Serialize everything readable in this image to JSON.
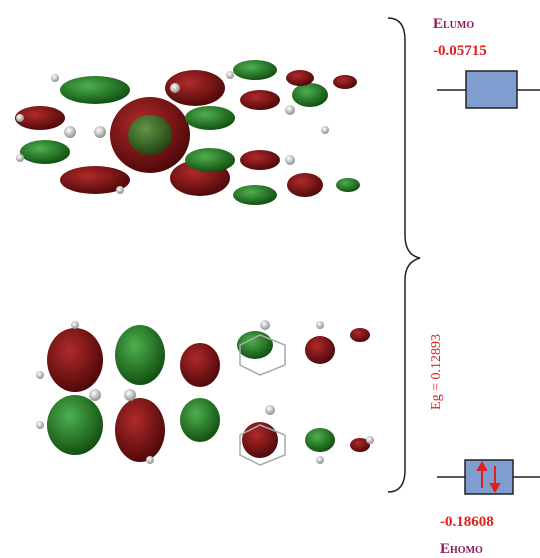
{
  "lumo": {
    "label": "E",
    "subscript": "LUMO",
    "energy": "-0.05715"
  },
  "homo": {
    "label": "E",
    "subscript": "HOMO",
    "energy": "-0.18608"
  },
  "gap": "Eg = 0.12893"
}
